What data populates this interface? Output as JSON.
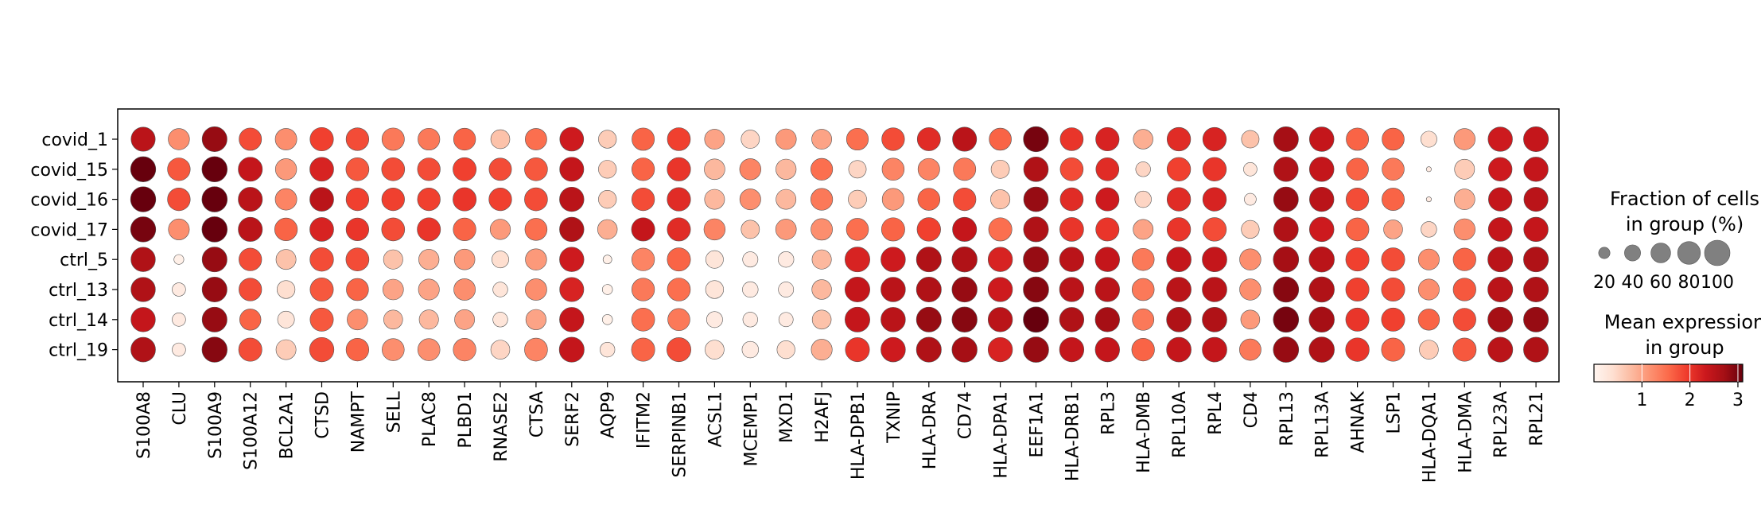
{
  "chart_data": {
    "type": "dotplot",
    "genes": [
      "S100A8",
      "CLU",
      "S100A9",
      "S100A12",
      "BCL2A1",
      "CTSD",
      "NAMPT",
      "SELL",
      "PLAC8",
      "PLBD1",
      "RNASE2",
      "CTSA",
      "SERF2",
      "AQP9",
      "IFITM2",
      "SERPINB1",
      "ACSL1",
      "MCEMP1",
      "MXD1",
      "H2AFJ",
      "HLA-DPB1",
      "TXNIP",
      "HLA-DRA",
      "CD74",
      "HLA-DPA1",
      "EEF1A1",
      "HLA-DRB1",
      "RPL3",
      "HLA-DMB",
      "RPL10A",
      "RPL4",
      "CD4",
      "RPL13",
      "RPL13A",
      "AHNAK",
      "LSP1",
      "HLA-DQA1",
      "HLA-DMA",
      "RPL23A",
      "RPL21"
    ],
    "groups": [
      "covid_1",
      "covid_15",
      "covid_16",
      "covid_17",
      "ctrl_5",
      "ctrl_13",
      "ctrl_14",
      "ctrl_19"
    ],
    "fraction": [
      [
        90,
        70,
        96,
        78,
        72,
        85,
        80,
        78,
        74,
        75,
        56,
        72,
        88,
        50,
        78,
        82,
        62,
        52,
        66,
        62,
        74,
        80,
        83,
        90,
        76,
        98,
        82,
        85,
        60,
        86,
        86,
        48,
        96,
        93,
        78,
        76,
        40,
        70,
        92,
        96
      ],
      [
        98,
        80,
        99,
        90,
        70,
        88,
        82,
        82,
        80,
        84,
        78,
        82,
        90,
        50,
        80,
        85,
        66,
        70,
        64,
        74,
        48,
        76,
        73,
        78,
        52,
        94,
        82,
        82,
        34,
        86,
        86,
        28,
        93,
        93,
        76,
        76,
        4,
        62,
        86,
        92
      ],
      [
        98,
        80,
        99,
        90,
        72,
        88,
        80,
        80,
        80,
        84,
        80,
        82,
        92,
        50,
        80,
        85,
        62,
        68,
        62,
        74,
        52,
        74,
        76,
        80,
        58,
        94,
        82,
        84,
        42,
        86,
        86,
        22,
        95,
        92,
        80,
        78,
        4,
        66,
        86,
        90
      ],
      [
        98,
        68,
        99,
        90,
        80,
        88,
        80,
        82,
        84,
        80,
        64,
        76,
        92,
        60,
        84,
        84,
        70,
        52,
        66,
        72,
        76,
        84,
        86,
        90,
        84,
        96,
        88,
        84,
        62,
        86,
        86,
        50,
        94,
        93,
        82,
        56,
        38,
        70,
        88,
        92
      ],
      [
        92,
        15,
        96,
        80,
        62,
        86,
        82,
        58,
        64,
        66,
        44,
        70,
        92,
        12,
        80,
        84,
        48,
        36,
        38,
        58,
        96,
        93,
        96,
        98,
        92,
        100,
        92,
        92,
        76,
        94,
        94,
        70,
        100,
        99,
        84,
        84,
        68,
        80,
        96,
        96
      ],
      [
        92,
        28,
        96,
        80,
        50,
        84,
        76,
        66,
        68,
        72,
        34,
        72,
        90,
        16,
        80,
        82,
        50,
        38,
        36,
        60,
        96,
        93,
        96,
        98,
        92,
        100,
        92,
        92,
        76,
        94,
        94,
        70,
        100,
        99,
        84,
        84,
        68,
        80,
        96,
        96
      ],
      [
        92,
        28,
        96,
        70,
        44,
        84,
        66,
        56,
        58,
        62,
        34,
        64,
        92,
        16,
        82,
        76,
        40,
        34,
        32,
        56,
        96,
        93,
        96,
        98,
        92,
        100,
        92,
        92,
        72,
        94,
        94,
        56,
        100,
        99,
        84,
        84,
        70,
        80,
        96,
        96
      ],
      [
        94,
        28,
        98,
        84,
        62,
        92,
        80,
        76,
        76,
        80,
        56,
        82,
        96,
        34,
        84,
        90,
        56,
        42,
        50,
        68,
        90,
        93,
        96,
        98,
        92,
        100,
        92,
        92,
        80,
        94,
        94,
        72,
        100,
        99,
        86,
        84,
        56,
        84,
        96,
        96
      ]
    ],
    "mean_expression": [
      [
        2.5,
        1.2,
        2.8,
        1.8,
        1.2,
        1.9,
        1.8,
        1.4,
        1.4,
        1.6,
        0.7,
        1.5,
        2.3,
        0.6,
        1.6,
        1.9,
        1.0,
        0.5,
        1.1,
        1.0,
        1.5,
        1.8,
        2.1,
        2.5,
        1.6,
        3.0,
        2.0,
        2.2,
        0.9,
        2.1,
        2.2,
        0.7,
        2.7,
        2.4,
        1.6,
        1.6,
        0.4,
        1.1,
        2.3,
        2.4
      ],
      [
        3.2,
        1.7,
        3.2,
        2.4,
        1.1,
        2.2,
        1.7,
        1.8,
        1.8,
        1.9,
        1.8,
        1.7,
        2.4,
        0.6,
        1.6,
        2.0,
        0.8,
        1.3,
        0.8,
        1.5,
        0.5,
        1.3,
        1.3,
        1.4,
        0.6,
        2.6,
        1.8,
        2.1,
        0.5,
        1.9,
        2.0,
        0.3,
        2.6,
        2.4,
        1.6,
        1.4,
        0.2,
        0.6,
        2.3,
        2.4
      ],
      [
        3.3,
        1.8,
        3.3,
        2.5,
        1.3,
        2.5,
        1.9,
        1.9,
        1.9,
        2.0,
        1.9,
        1.8,
        2.5,
        0.6,
        1.8,
        2.1,
        0.8,
        1.2,
        0.8,
        1.4,
        0.6,
        1.1,
        1.6,
        1.8,
        0.7,
        2.8,
        2.1,
        2.3,
        0.5,
        2.1,
        2.2,
        0.2,
        2.8,
        2.5,
        1.8,
        1.6,
        0.2,
        0.9,
        2.4,
        2.5
      ],
      [
        3.0,
        1.2,
        3.2,
        2.5,
        1.6,
        2.2,
        2.0,
        1.8,
        2.0,
        1.6,
        1.1,
        1.5,
        2.6,
        0.9,
        2.4,
        2.1,
        1.3,
        0.7,
        1.1,
        1.2,
        1.5,
        1.6,
        1.9,
        2.4,
        1.5,
        2.6,
        2.0,
        2.0,
        1.0,
        2.0,
        1.8,
        0.6,
        2.6,
        2.3,
        1.6,
        1.0,
        0.5,
        1.2,
        2.4,
        2.4
      ],
      [
        2.6,
        0.1,
        2.8,
        1.8,
        0.7,
        1.8,
        1.8,
        0.7,
        0.9,
        1.1,
        0.4,
        1.1,
        2.3,
        0.1,
        1.3,
        1.6,
        0.3,
        0.2,
        0.2,
        0.8,
        2.2,
        2.3,
        2.6,
        2.6,
        2.2,
        2.8,
        2.5,
        2.4,
        1.4,
        2.4,
        2.4,
        1.2,
        2.7,
        2.5,
        1.9,
        1.8,
        1.2,
        1.6,
        2.5,
        2.6
      ],
      [
        2.6,
        0.2,
        2.8,
        1.8,
        0.4,
        1.7,
        1.6,
        1.0,
        1.0,
        1.2,
        0.3,
        1.2,
        2.2,
        0.1,
        1.4,
        1.5,
        0.3,
        0.2,
        0.2,
        0.8,
        2.4,
        2.5,
        2.6,
        2.8,
        2.3,
        2.9,
        2.5,
        2.5,
        1.4,
        2.5,
        2.5,
        1.2,
        2.9,
        2.6,
        1.9,
        1.8,
        1.2,
        1.7,
        2.5,
        2.6
      ],
      [
        2.4,
        0.2,
        2.8,
        1.6,
        0.3,
        1.7,
        1.2,
        0.8,
        0.8,
        1.0,
        0.3,
        1.0,
        2.4,
        0.1,
        1.5,
        1.4,
        0.2,
        0.2,
        0.2,
        0.7,
        2.4,
        2.5,
        2.8,
        2.9,
        2.5,
        3.1,
        2.6,
        2.7,
        1.4,
        2.6,
        2.6,
        1.1,
        3.0,
        2.7,
        2.0,
        1.9,
        1.6,
        1.8,
        2.7,
        2.8
      ],
      [
        2.6,
        0.2,
        2.9,
        1.8,
        0.6,
        1.8,
        1.6,
        1.2,
        1.2,
        1.3,
        0.5,
        1.3,
        2.4,
        0.3,
        1.6,
        1.8,
        0.4,
        0.2,
        0.4,
        0.9,
        2.0,
        2.3,
        2.6,
        2.7,
        2.2,
        2.8,
        2.4,
        2.4,
        1.6,
        2.4,
        2.4,
        1.4,
        2.8,
        2.6,
        2.0,
        1.6,
        0.6,
        1.7,
        2.5,
        2.6
      ]
    ],
    "size_legend": {
      "title": "Fraction of cells\nin group (%)",
      "values": [
        20,
        40,
        60,
        80,
        100
      ],
      "labels": [
        "20",
        "40",
        "60",
        "80",
        "100"
      ]
    },
    "color_legend": {
      "title": "Mean expression\nin group",
      "range": [
        0,
        3.1
      ],
      "ticks": [
        1,
        2,
        3
      ],
      "tick_labels": [
        "1",
        "2",
        "3"
      ],
      "colormap": "Reds",
      "stops": [
        "#fff5f0",
        "#fee0d2",
        "#fcbba1",
        "#fc9272",
        "#fb6a4a",
        "#ef3b2c",
        "#cb181d",
        "#a50f15",
        "#67000d"
      ]
    }
  }
}
